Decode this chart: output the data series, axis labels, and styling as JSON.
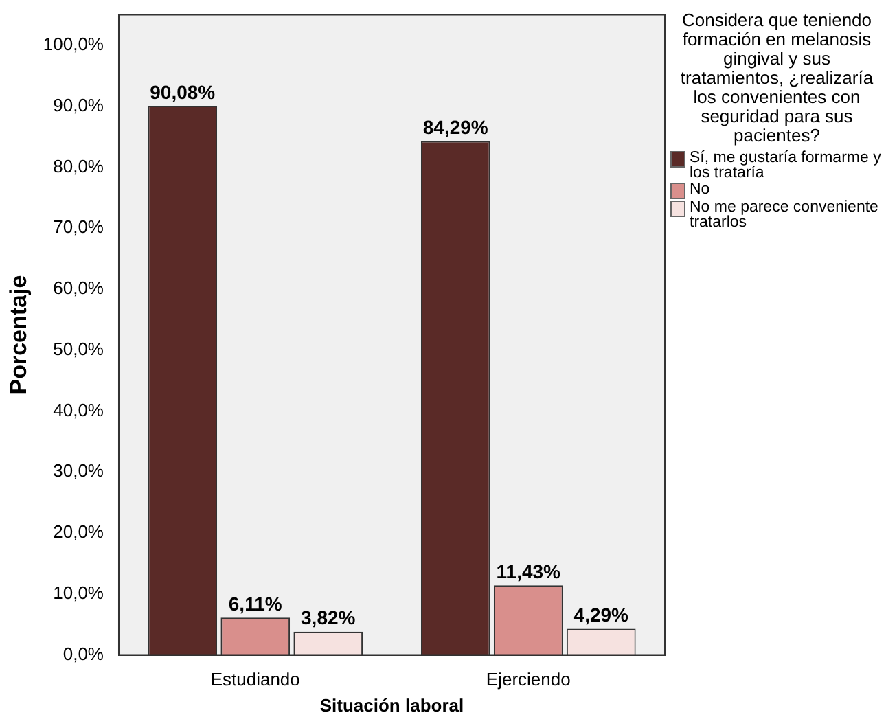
{
  "chart_data": {
    "type": "bar",
    "xlabel": "Situación laboral",
    "ylabel": "Porcentaje",
    "legend_title": "Considera que teniendo formación en melanosis gingival y sus tratamientos, ¿realizaría los convenientes con seguridad para sus pacientes?",
    "categories": [
      "Estudiando",
      "Ejerciendo"
    ],
    "series": [
      {
        "name": "Sí, me gustaría formarme y los trataría",
        "color": "#5a2a27",
        "values": [
          90.08,
          84.29
        ],
        "value_labels": [
          "90,08%",
          "84,29%"
        ]
      },
      {
        "name": "No",
        "color": "#d98f8c",
        "values": [
          6.11,
          11.43
        ],
        "value_labels": [
          "6,11%",
          "11,43%"
        ]
      },
      {
        "name": "No me parece conveniente tratarlos",
        "color": "#f6e2e0",
        "values": [
          3.82,
          4.29
        ],
        "value_labels": [
          "3,82%",
          "4,29%"
        ]
      }
    ],
    "ylim": [
      0,
      105
    ],
    "yticks": [
      {
        "value": 0,
        "label": "0,0%"
      },
      {
        "value": 10,
        "label": "10,0%"
      },
      {
        "value": 20,
        "label": "20,0%"
      },
      {
        "value": 30,
        "label": "30,0%"
      },
      {
        "value": 40,
        "label": "40,0%"
      },
      {
        "value": 50,
        "label": "50,0%"
      },
      {
        "value": 60,
        "label": "60,0%"
      },
      {
        "value": 70,
        "label": "70,0%"
      },
      {
        "value": 80,
        "label": "80,0%"
      },
      {
        "value": 90,
        "label": "90,0%"
      },
      {
        "value": 100,
        "label": "100,0%"
      }
    ],
    "grid": false,
    "legend": "right"
  }
}
